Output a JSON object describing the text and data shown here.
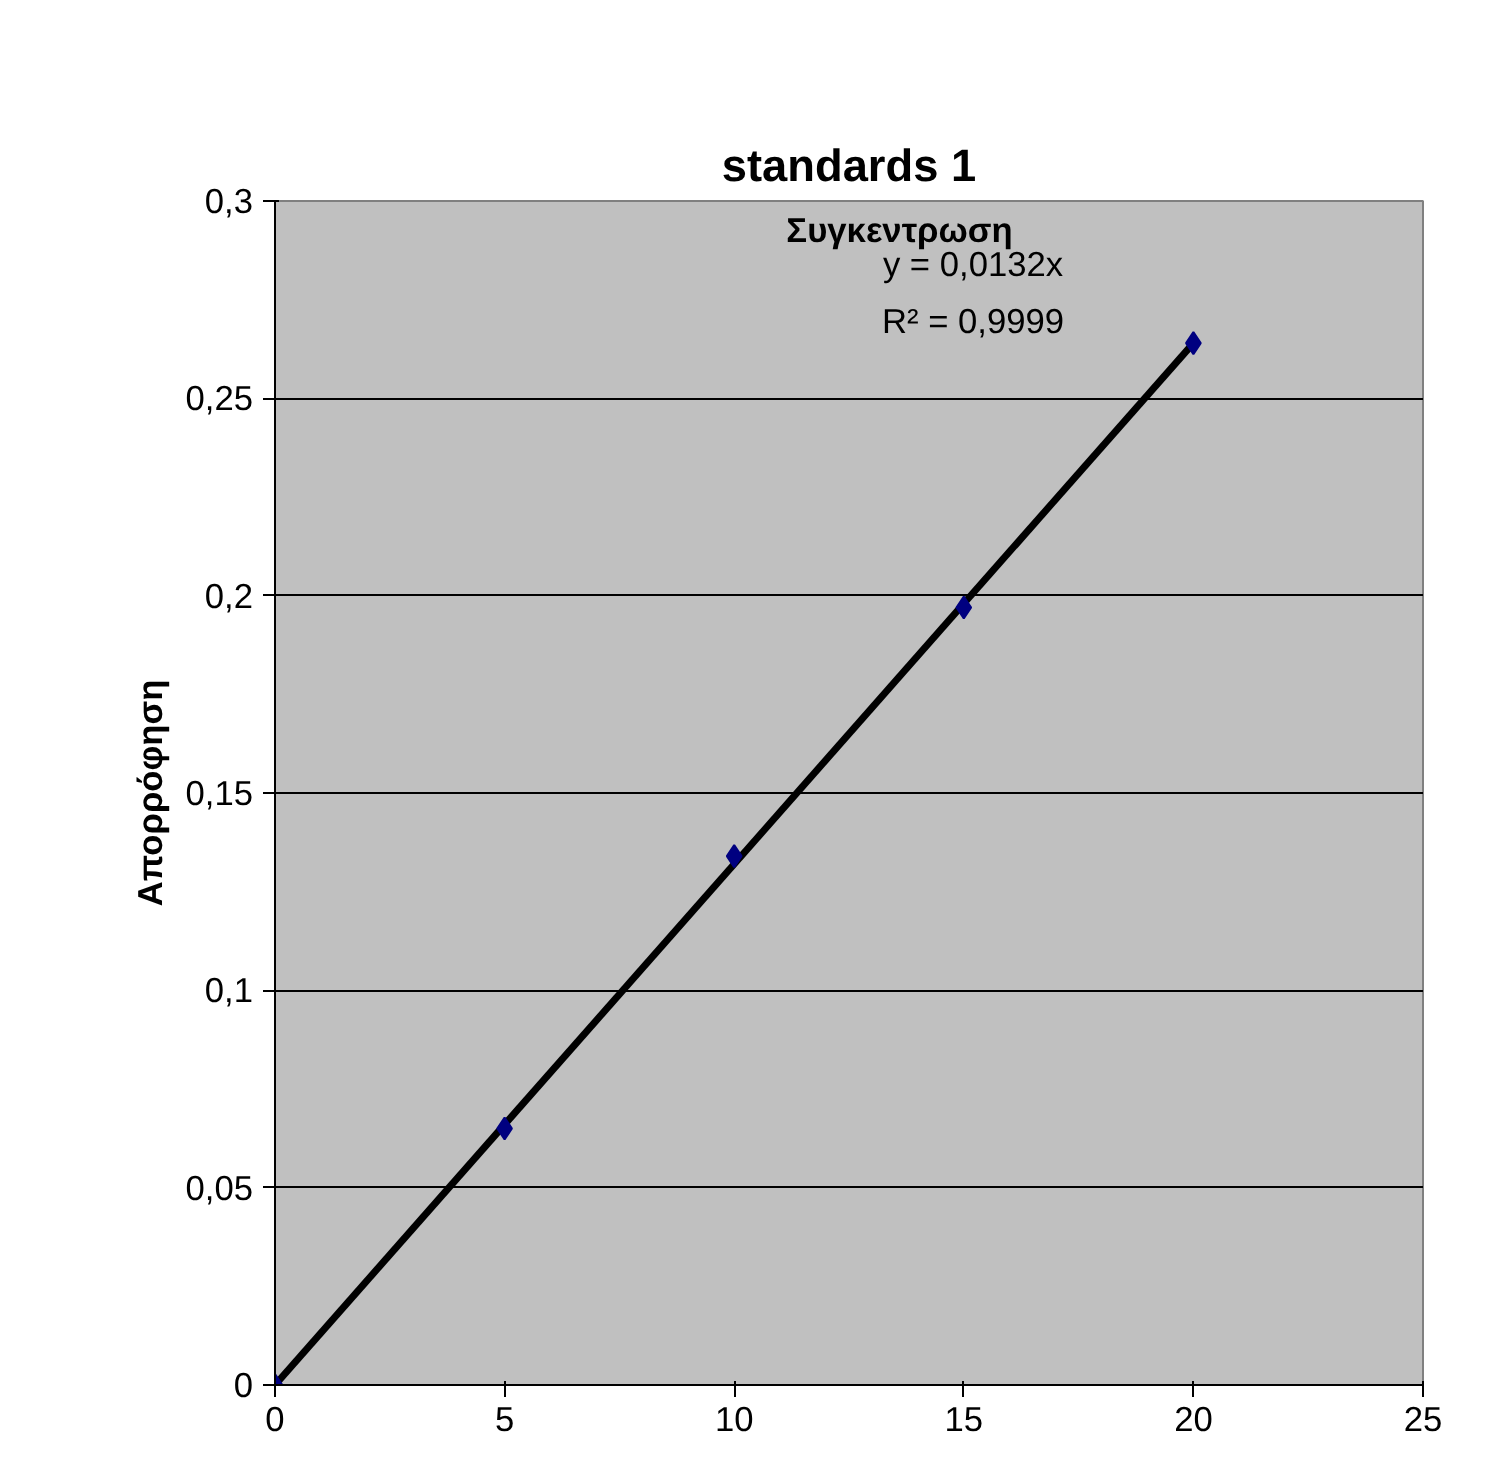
{
  "chart_data": {
    "type": "scatter",
    "title": "standards 1",
    "xlabel": "Συγκεντρωση",
    "ylabel": "Απορρόφηση",
    "annotations": [
      "y = 0,0132x",
      "R² = 0,9999"
    ],
    "series": [
      {
        "color": "#000080",
        "x": [
          0,
          5,
          10,
          15,
          20
        ],
        "values": [
          0,
          0.065,
          0.134,
          0.197,
          0.264
        ],
        "marker": "diamond"
      },
      {
        "type": "line",
        "color": "#000000",
        "x": [
          0,
          20
        ],
        "values": [
          0,
          0.264
        ],
        "line_style": "solid"
      }
    ],
    "xlim": [
      0,
      25
    ],
    "xticks": [
      0,
      5,
      10,
      15,
      20,
      25
    ],
    "ylim": [
      0,
      0.3
    ],
    "yticks": [
      0,
      {
        "value": 0.05,
        "label": "0,05"
      },
      {
        "value": 0.1,
        "label": "0,1"
      },
      {
        "value": 0.15,
        "label": "0,15"
      },
      {
        "value": 0.2,
        "label": "0,2"
      },
      {
        "value": 0.25,
        "label": "0,25"
      },
      {
        "value": 0.3,
        "label": "0,3"
      }
    ],
    "grid": "y"
  }
}
